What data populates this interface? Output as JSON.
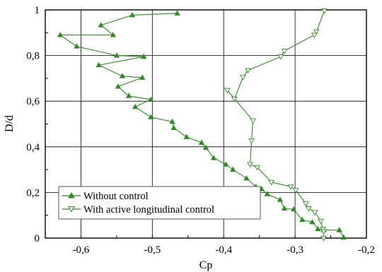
{
  "chart_data": {
    "type": "line",
    "xlabel": "Cp",
    "ylabel": "D/d",
    "xlim": [
      -0.65,
      -0.2
    ],
    "ylim": [
      0,
      1
    ],
    "grid": true,
    "x_ticks": [
      -0.6,
      -0.5,
      -0.4,
      -0.3,
      -0.2
    ],
    "x_tick_labels": [
      "-0,6",
      "-0,5",
      "-0,4",
      "-0,3",
      "-0,2"
    ],
    "y_ticks": [
      0,
      0.2,
      0.4,
      0.6,
      0.8,
      1
    ],
    "y_tick_labels": [
      "0",
      "0,2",
      "0,4",
      "0,6",
      "0,8",
      "1"
    ],
    "legend_position": "bottom-left",
    "series": [
      {
        "name": "Without control",
        "color": "#2e8b22",
        "marker": "triangle-up-filled",
        "points": [
          [
            -0.465,
            0.985
          ],
          [
            -0.528,
            0.977
          ],
          [
            -0.572,
            0.933
          ],
          [
            -0.555,
            0.89
          ],
          [
            -0.629,
            0.89
          ],
          [
            -0.606,
            0.84
          ],
          [
            -0.55,
            0.8
          ],
          [
            -0.512,
            0.795
          ],
          [
            -0.575,
            0.758
          ],
          [
            -0.542,
            0.71
          ],
          [
            -0.514,
            0.703
          ],
          [
            -0.548,
            0.664
          ],
          [
            -0.533,
            0.623
          ],
          [
            -0.502,
            0.607
          ],
          [
            -0.524,
            0.575
          ],
          [
            -0.502,
            0.53
          ],
          [
            -0.472,
            0.51
          ],
          [
            -0.47,
            0.483
          ],
          [
            -0.452,
            0.443
          ],
          [
            -0.431,
            0.418
          ],
          [
            -0.425,
            0.396
          ],
          [
            -0.414,
            0.351
          ],
          [
            -0.397,
            0.323
          ],
          [
            -0.387,
            0.3
          ],
          [
            -0.368,
            0.262
          ],
          [
            -0.355,
            0.225
          ],
          [
            -0.347,
            0.215
          ],
          [
            -0.339,
            0.193
          ],
          [
            -0.321,
            0.168
          ],
          [
            -0.315,
            0.13
          ],
          [
            -0.302,
            0.126
          ],
          [
            -0.29,
            0.08
          ],
          [
            -0.276,
            0.07
          ],
          [
            -0.268,
            0.04
          ],
          [
            -0.26,
            0.035
          ],
          [
            -0.238,
            0.035
          ],
          [
            -0.232,
            0.003
          ]
        ]
      },
      {
        "name": "With active longitudinal control",
        "color": "#2e8b22",
        "marker": "triangle-down-open",
        "points": [
          [
            -0.259,
            0.997
          ],
          [
            -0.27,
            0.905
          ],
          [
            -0.273,
            0.89
          ],
          [
            -0.315,
            0.82
          ],
          [
            -0.32,
            0.795
          ],
          [
            -0.366,
            0.735
          ],
          [
            -0.373,
            0.705
          ],
          [
            -0.385,
            0.61
          ],
          [
            -0.395,
            0.648
          ],
          [
            -0.359,
            0.515
          ],
          [
            -0.361,
            0.427
          ],
          [
            -0.363,
            0.323
          ],
          [
            -0.353,
            0.31
          ],
          [
            -0.333,
            0.245
          ],
          [
            -0.306,
            0.225
          ],
          [
            -0.299,
            0.21
          ],
          [
            -0.285,
            0.152
          ],
          [
            -0.281,
            0.13
          ],
          [
            -0.272,
            0.113
          ],
          [
            -0.264,
            0.075
          ],
          [
            -0.261,
            0.04
          ],
          [
            -0.26,
            0.03
          ],
          [
            -0.26,
            0.0
          ]
        ]
      }
    ]
  }
}
